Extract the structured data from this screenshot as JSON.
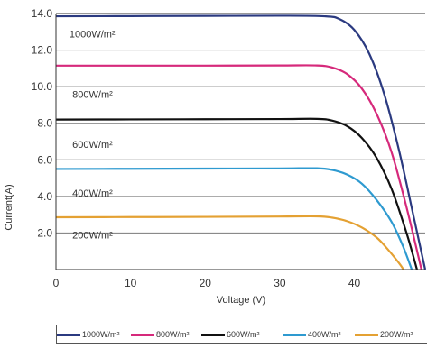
{
  "chart_data": {
    "type": "line",
    "title": "",
    "xlabel": "Voltage  (V)",
    "ylabel": "Current(A)",
    "xlim": [
      0,
      49.5
    ],
    "ylim": [
      0,
      14.0
    ],
    "x_ticks": [
      "0",
      "10",
      "20",
      "30",
      "40"
    ],
    "y_ticks": [
      "2.0",
      "4.0",
      "6.0",
      "8.0",
      "10.0",
      "12.0",
      "14.0"
    ],
    "grid": "horizontal",
    "legend_position": "bottom",
    "series": [
      {
        "name": "1000W/m²",
        "color": "#2b3a80",
        "isc": 13.85,
        "imp": 13.15,
        "vmp": 39.6,
        "voc": 49.5,
        "points": [
          [
            0,
            13.85
          ],
          [
            10,
            13.86
          ],
          [
            20,
            13.87
          ],
          [
            30,
            13.88
          ],
          [
            36,
            13.85
          ],
          [
            38,
            13.7
          ],
          [
            40,
            13.1
          ],
          [
            42,
            11.8
          ],
          [
            44,
            9.6
          ],
          [
            46,
            6.5
          ],
          [
            48,
            2.8
          ],
          [
            49.5,
            0
          ]
        ]
      },
      {
        "name": "800W/m²",
        "color": "#d6297b",
        "isc": 11.15,
        "imp": 10.6,
        "vmp": 39.4,
        "voc": 49.0,
        "points": [
          [
            0,
            11.15
          ],
          [
            10,
            11.15
          ],
          [
            20,
            11.15
          ],
          [
            30,
            11.16
          ],
          [
            35,
            11.16
          ],
          [
            37,
            11.05
          ],
          [
            39,
            10.7
          ],
          [
            41,
            9.9
          ],
          [
            43,
            8.5
          ],
          [
            45,
            6.4
          ],
          [
            47,
            3.4
          ],
          [
            49,
            0
          ]
        ]
      },
      {
        "name": "600W/m²",
        "color": "#111111",
        "isc": 8.2,
        "imp": 7.8,
        "vmp": 39.0,
        "voc": 48.4,
        "points": [
          [
            0,
            8.2
          ],
          [
            10,
            8.21
          ],
          [
            20,
            8.22
          ],
          [
            30,
            8.23
          ],
          [
            35,
            8.24
          ],
          [
            37,
            8.15
          ],
          [
            39,
            7.85
          ],
          [
            41,
            7.2
          ],
          [
            43,
            6.1
          ],
          [
            45,
            4.4
          ],
          [
            47,
            2.0
          ],
          [
            48.4,
            0
          ]
        ]
      },
      {
        "name": "400W/m²",
        "color": "#2e9ad0",
        "isc": 5.5,
        "imp": 5.2,
        "vmp": 38.6,
        "voc": 47.7,
        "points": [
          [
            0,
            5.5
          ],
          [
            10,
            5.51
          ],
          [
            20,
            5.52
          ],
          [
            30,
            5.53
          ],
          [
            35,
            5.54
          ],
          [
            37,
            5.45
          ],
          [
            39,
            5.2
          ],
          [
            41,
            4.7
          ],
          [
            43,
            3.8
          ],
          [
            45,
            2.6
          ],
          [
            46.5,
            1.3
          ],
          [
            47.7,
            0
          ]
        ]
      },
      {
        "name": "200W/m²",
        "color": "#e4a133",
        "isc": 2.86,
        "imp": 2.7,
        "vmp": 37.8,
        "voc": 46.6,
        "points": [
          [
            0,
            2.86
          ],
          [
            10,
            2.87
          ],
          [
            20,
            2.88
          ],
          [
            30,
            2.9
          ],
          [
            35,
            2.91
          ],
          [
            37,
            2.84
          ],
          [
            39,
            2.65
          ],
          [
            41,
            2.3
          ],
          [
            43,
            1.75
          ],
          [
            44.5,
            1.1
          ],
          [
            46,
            0.35
          ],
          [
            46.6,
            0
          ]
        ]
      }
    ],
    "annotations": [
      {
        "text": "1000W/m²",
        "x": 1.8,
        "y": 12.9
      },
      {
        "text": "800W/m²",
        "x": 2.2,
        "y": 9.6
      },
      {
        "text": "600W/m²",
        "x": 2.2,
        "y": 6.85
      },
      {
        "text": "400W/m²",
        "x": 2.2,
        "y": 4.2
      },
      {
        "text": "200W/m²",
        "x": 2.2,
        "y": 1.9
      }
    ]
  }
}
